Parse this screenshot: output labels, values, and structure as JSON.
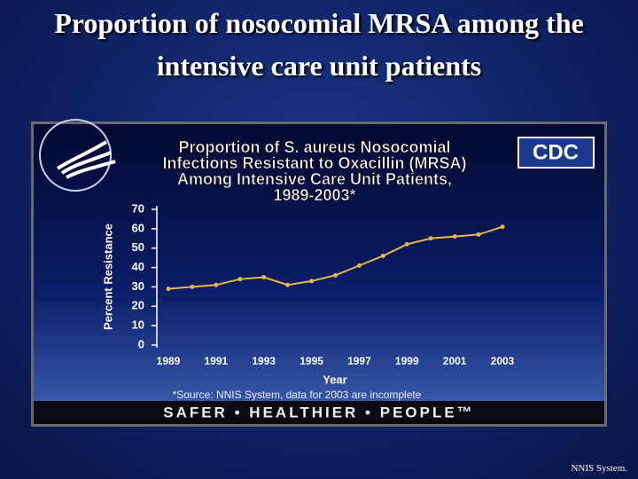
{
  "slide_title": "Proportion of nosocomial MRSA among the intensive care unit patients",
  "footer": "NNIS System.",
  "chart_data": {
    "type": "line",
    "title": [
      "Proportion of S. aureus Nosocomial",
      "Infections Resistant to Oxacillin (MRSA)",
      "Among Intensive Care Unit Patients,",
      "1989-2003*"
    ],
    "logo": "CDC",
    "x": [
      1989,
      1990,
      1991,
      1992,
      1993,
      1994,
      1995,
      1996,
      1997,
      1998,
      1999,
      2000,
      2001,
      2002,
      2003
    ],
    "values": [
      29,
      30,
      31,
      34,
      35,
      31,
      33,
      36,
      41,
      46,
      52,
      55,
      56,
      57,
      61
    ],
    "color": "#e6b64a",
    "xlim": [
      1989,
      2003
    ],
    "xticks": [
      1989,
      1991,
      1993,
      1995,
      1997,
      1999,
      2001,
      2003
    ],
    "ylim": [
      0,
      70
    ],
    "yticks": [
      0,
      10,
      20,
      30,
      40,
      50,
      60,
      70
    ],
    "xlabel": "Year",
    "ylabel": "Percent Resistance",
    "source": "*Source: NNIS System, data for 2003 are incomplete",
    "banner": "SAFER • HEALTHIER • PEOPLE™"
  }
}
